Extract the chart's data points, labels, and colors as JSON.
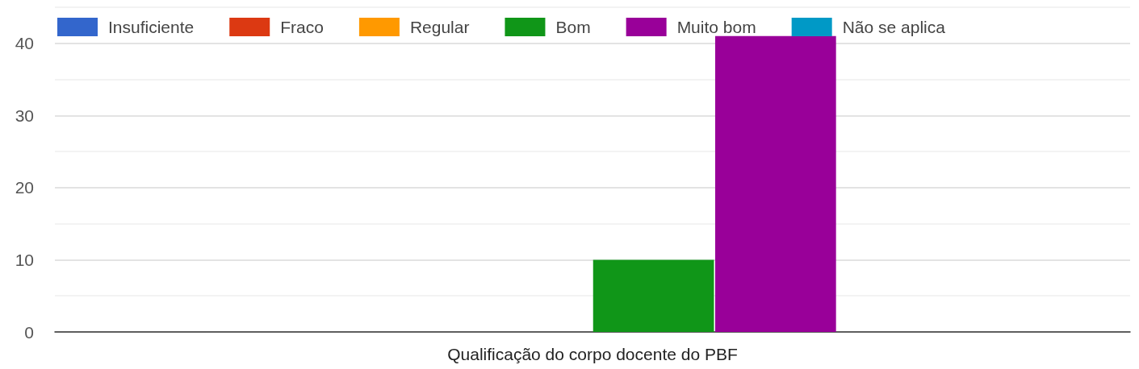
{
  "chart_data": {
    "type": "bar",
    "categories": [
      "Qualificação do corpo docente do PBF"
    ],
    "series": [
      {
        "name": "Insuficiente",
        "color": "#3366cc",
        "values": [
          0
        ]
      },
      {
        "name": "Fraco",
        "color": "#dc3912",
        "values": [
          0
        ]
      },
      {
        "name": "Regular",
        "color": "#ff9900",
        "values": [
          0
        ]
      },
      {
        "name": "Bom",
        "color": "#109618",
        "values": [
          10
        ]
      },
      {
        "name": "Muito bom",
        "color": "#990099",
        "values": [
          41
        ]
      },
      {
        "name": "Não se aplica",
        "color": "#0099c6",
        "values": [
          0
        ]
      }
    ],
    "ylim": [
      0,
      45
    ],
    "yticks": [
      0,
      {
        "value": 5,
        "label": null
      },
      10,
      {
        "value": 15,
        "label": null
      },
      20,
      {
        "value": 25,
        "label": null
      },
      30,
      {
        "value": 35,
        "label": null
      },
      40,
      {
        "value": 45,
        "label": null
      }
    ],
    "grid": true,
    "legend": "top left"
  }
}
